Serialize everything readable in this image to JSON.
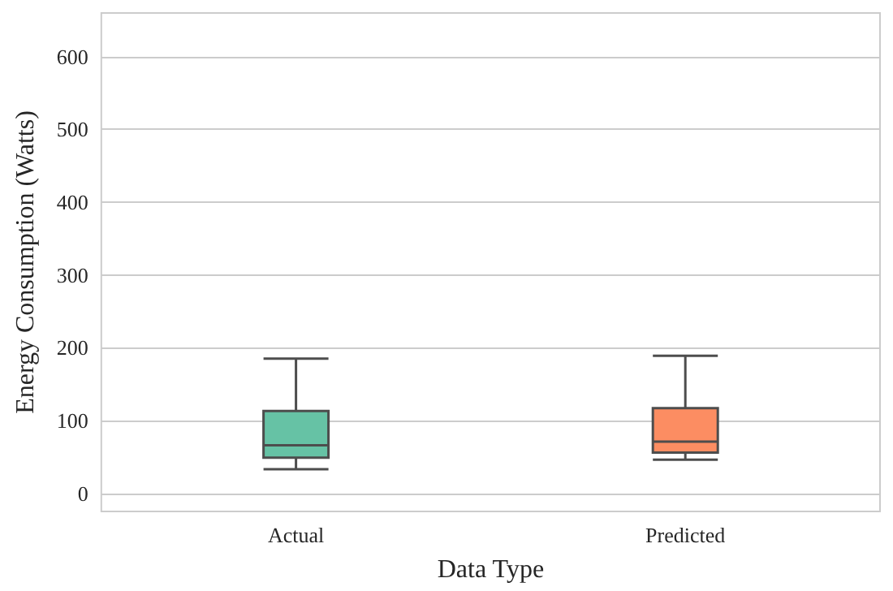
{
  "chart_data": {
    "type": "box",
    "xlabel": "Data Type",
    "ylabel": "Energy Consumption (Watts)",
    "categories": [
      "Actual",
      "Predicted"
    ],
    "boxes": [
      {
        "low": 33,
        "q1": 49,
        "median": 66,
        "q3": 113,
        "high": 185
      },
      {
        "low": 46,
        "q1": 56,
        "median": 71,
        "q3": 117,
        "high": 189
      }
    ],
    "colors": [
      "#66c2a5",
      "#fc8d62"
    ],
    "ylim": [
      -25,
      660
    ],
    "yticks": [
      0,
      100,
      200,
      300,
      400,
      500,
      600
    ],
    "grid": "y"
  }
}
